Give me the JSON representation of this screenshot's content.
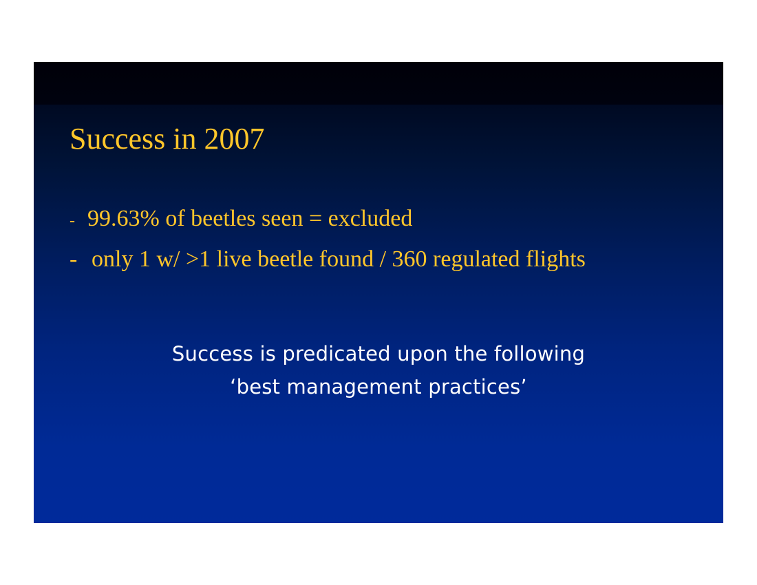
{
  "slide": {
    "title": "Success in 2007",
    "bullets": [
      {
        "marker": "-",
        "text": "99.63% of beetles seen = excluded"
      },
      {
        "marker": "-",
        "text": "only 1 w/ >1 live beetle found / 360 regulated flights"
      }
    ],
    "callout": {
      "line1": "Success is predicated upon the following",
      "line2": "‘best management practices’"
    },
    "colors": {
      "background_top": "#000008",
      "background_bottom": "#002a9b",
      "title_text": "#ffc62a",
      "callout_text": "#ffffff",
      "page": "#ffffff"
    }
  }
}
